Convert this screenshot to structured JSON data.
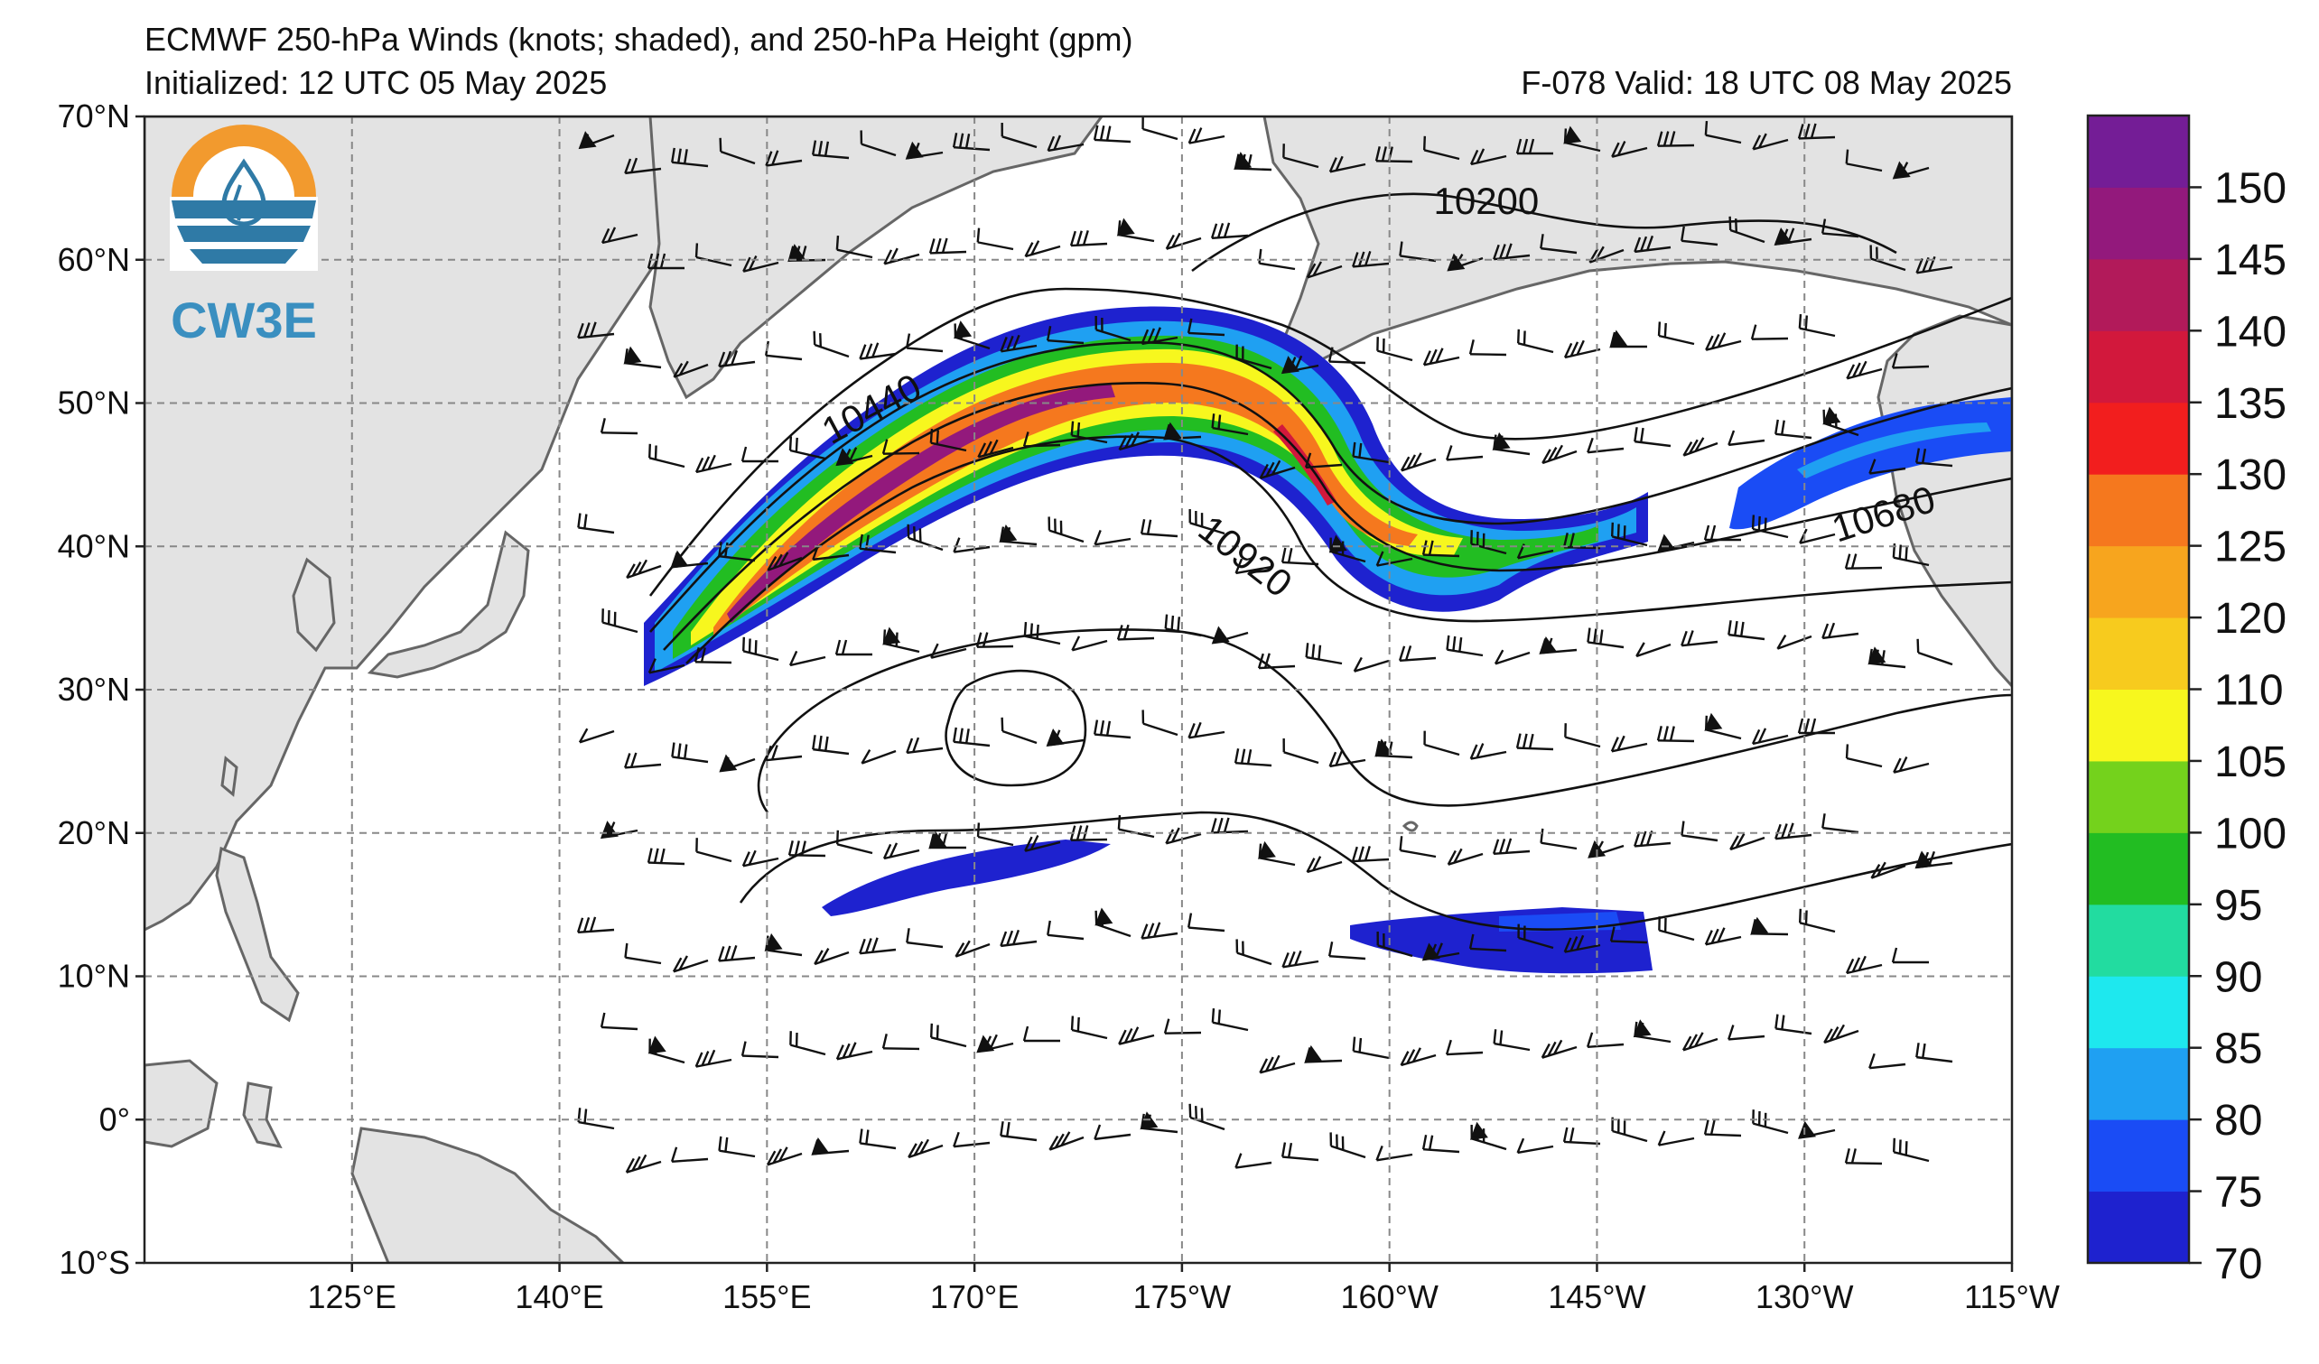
{
  "header": {
    "title": "ECMWF 250-hPa Winds (knots; shaded), and 250-hPa Height (gpm)",
    "initialized": "Initialized: 12 UTC 05 May 2025",
    "valid": "F-078  Valid: 18 UTC 08 May 2025"
  },
  "logo": {
    "text": "CW3E",
    "icon": "water-drop-sun-icon"
  },
  "map": {
    "lon_min": 110,
    "lon_max": 245,
    "lat_min": -10,
    "lat_max": 70,
    "lat_labels": [
      "70°N",
      "60°N",
      "50°N",
      "40°N",
      "30°N",
      "20°N",
      "10°N",
      "0°",
      "10°S"
    ],
    "lat_values": [
      70,
      60,
      50,
      40,
      30,
      20,
      10,
      0,
      -10
    ],
    "lon_labels": [
      "125°E",
      "140°E",
      "155°E",
      "170°E",
      "175°W",
      "160°W",
      "145°W",
      "130°W",
      "115°W"
    ],
    "lon_values": [
      125,
      140,
      155,
      170,
      185,
      200,
      215,
      230,
      245
    ],
    "land_color": "#e3e3e3",
    "coast_color": "#666666",
    "grid": true
  },
  "contours": {
    "labels": [
      {
        "text": "10200",
        "lon": 207,
        "lat": 63.2,
        "angle": 0
      },
      {
        "text": "10440",
        "lon": 163,
        "lat": 48.8,
        "angle": -28
      },
      {
        "text": "10920",
        "lon": 189,
        "lat": 38.6,
        "angle": 38
      },
      {
        "text": "10680",
        "lon": 236,
        "lat": 41.4,
        "angle": -18
      }
    ]
  },
  "colorbar": {
    "ticks": [
      "70",
      "75",
      "80",
      "85",
      "90",
      "95",
      "100",
      "105",
      "110",
      "120",
      "125",
      "130",
      "135",
      "140",
      "145",
      "150"
    ],
    "colors": [
      "#1e22cf",
      "#1a4cf5",
      "#1fa0f2",
      "#1ee8ee",
      "#22dca0",
      "#22bd22",
      "#74d21c",
      "#f7f71e",
      "#f7cb1e",
      "#f7a51e",
      "#f5781e",
      "#f21e1e",
      "#d2183c",
      "#b21a5a",
      "#93197c",
      "#741d96"
    ]
  }
}
